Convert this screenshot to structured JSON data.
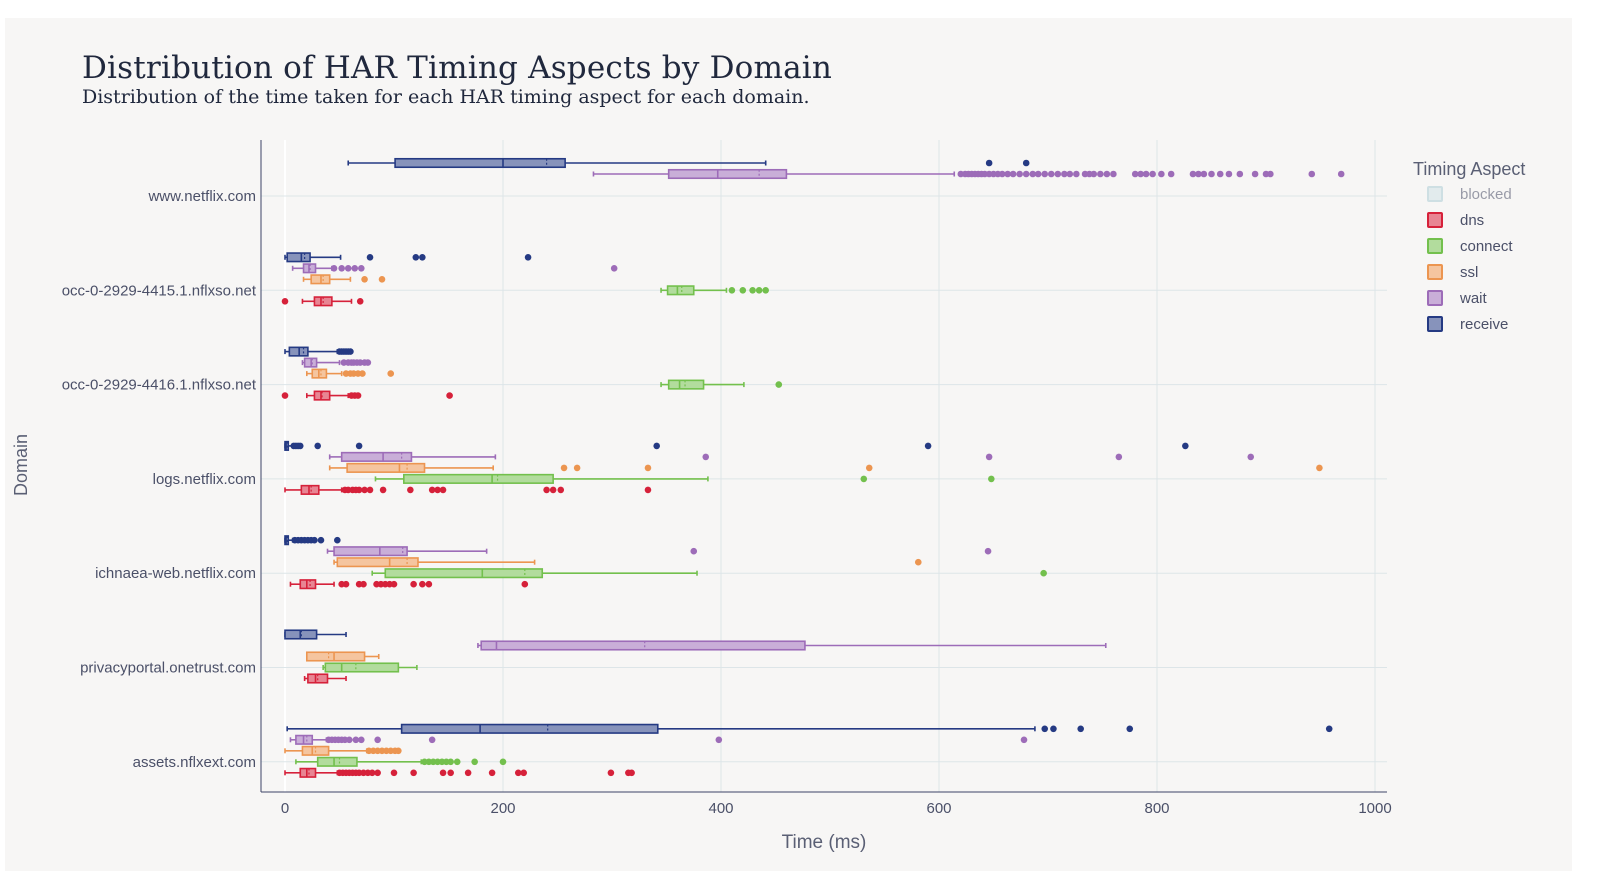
{
  "title": "Distribution of HAR Timing Aspects by Domain",
  "subtitle": "Distribution of the time taken for each HAR timing aspect for each domain.",
  "chart_data": {
    "type": "box",
    "orientation": "horizontal",
    "xlabel": "Time (ms)",
    "ylabel": "Domain",
    "xlim": [
      -20,
      1010
    ],
    "xticks": [
      0,
      200,
      400,
      600,
      800,
      1000
    ],
    "grid": true,
    "legend": {
      "title": "Timing Aspect",
      "placement": "right"
    },
    "categories": [
      "www.netflix.com",
      "occ-0-2929-4415.1.nflxso.net",
      "occ-0-2929-4416.1.nflxso.net",
      "logs.netflix.com",
      "ichnaea-web.netflix.com",
      "privacyportal.onetrust.com",
      "assets.nflxext.com"
    ],
    "series": [
      {
        "name": "blocked",
        "color": "#9ec4cf",
        "hidden": true,
        "boxes": []
      },
      {
        "name": "dns",
        "color": "#d6213a",
        "boxes": [
          {
            "domain": "occ-0-2929-4415.1.nflxso.net",
            "min": 16,
            "q1": 27,
            "median": 33,
            "mean": 35,
            "q3": 43,
            "max": 61,
            "outliers": [
              0,
              69
            ]
          },
          {
            "domain": "occ-0-2929-4416.1.nflxso.net",
            "min": 20,
            "q1": 27,
            "median": 33,
            "mean": 34,
            "q3": 41,
            "max": 58,
            "outliers": [
              0,
              61,
              64,
              67,
              151
            ]
          },
          {
            "domain": "logs.netflix.com",
            "min": 0,
            "q1": 15,
            "median": 22,
            "mean": 24,
            "q3": 31,
            "max": 52,
            "outliers": [
              55,
              58,
              62,
              65,
              68,
              73,
              78,
              90,
              115,
              135,
              140,
              145,
              240,
              246,
              253,
              333
            ]
          },
          {
            "domain": "ichnaea-web.netflix.com",
            "min": 5,
            "q1": 14,
            "median": 20,
            "mean": 23,
            "q3": 28,
            "max": 45,
            "outliers": [
              52,
              56,
              68,
              72,
              84,
              88,
              92,
              96,
              100,
              118,
              126,
              132,
              220
            ]
          },
          {
            "domain": "privacyportal.onetrust.com",
            "min": 18,
            "q1": 21,
            "median": 28,
            "mean": 30,
            "q3": 39,
            "max": 56,
            "outliers": []
          },
          {
            "domain": "assets.nflxext.com",
            "min": 0,
            "q1": 14,
            "median": 20,
            "mean": 22,
            "q3": 28,
            "max": 48,
            "outliers": [
              50,
              53,
              56,
              59,
              62,
              65,
              68,
              72,
              76,
              80,
              85,
              100,
              118,
              145,
              152,
              168,
              190,
              214,
              219,
              299,
              315,
              318
            ]
          }
        ]
      },
      {
        "name": "connect",
        "color": "#73c04d",
        "boxes": [
          {
            "domain": "occ-0-2929-4415.1.nflxso.net",
            "min": 345,
            "q1": 351,
            "median": 360,
            "mean": 364,
            "q3": 375,
            "max": 405,
            "outliers": [
              410,
              420,
              429,
              435,
              441
            ]
          },
          {
            "domain": "occ-0-2929-4416.1.nflxso.net",
            "min": 345,
            "q1": 352,
            "median": 362,
            "mean": 367,
            "q3": 384,
            "max": 421,
            "outliers": [
              453
            ]
          },
          {
            "domain": "logs.netflix.com",
            "min": 83,
            "q1": 109,
            "median": 190,
            "mean": 195,
            "q3": 246,
            "max": 388,
            "outliers": [
              531,
              648
            ]
          },
          {
            "domain": "ichnaea-web.netflix.com",
            "min": 80,
            "q1": 92,
            "median": 181,
            "mean": 220,
            "q3": 236,
            "max": 378,
            "outliers": [
              696
            ]
          },
          {
            "domain": "privacyportal.onetrust.com",
            "min": 35,
            "q1": 37,
            "median": 52,
            "mean": 65,
            "q3": 104,
            "max": 121,
            "outliers": []
          },
          {
            "domain": "assets.nflxext.com",
            "min": 10,
            "q1": 30,
            "median": 45,
            "mean": 50,
            "q3": 66,
            "max": 125,
            "outliers": [
              128,
              132,
              136,
              140,
              144,
              148,
              152,
              158,
              174,
              200
            ]
          }
        ]
      },
      {
        "name": "ssl",
        "color": "#ec9550",
        "boxes": [
          {
            "domain": "occ-0-2929-4415.1.nflxso.net",
            "min": 17,
            "q1": 24,
            "median": 33,
            "mean": 35,
            "q3": 41,
            "max": 60,
            "outliers": [
              73,
              89
            ]
          },
          {
            "domain": "occ-0-2929-4416.1.nflxso.net",
            "min": 20,
            "q1": 25,
            "median": 31,
            "mean": 33,
            "q3": 38,
            "max": 52,
            "outliers": [
              56,
              60,
              63,
              67,
              71,
              97
            ]
          },
          {
            "domain": "logs.netflix.com",
            "min": 41,
            "q1": 57,
            "median": 105,
            "mean": 112,
            "q3": 128,
            "max": 191,
            "outliers": [
              256,
              268,
              333,
              536,
              949
            ]
          },
          {
            "domain": "ichnaea-web.netflix.com",
            "min": 45,
            "q1": 48,
            "median": 96,
            "mean": 112,
            "q3": 122,
            "max": 229,
            "outliers": [
              581
            ]
          },
          {
            "domain": "privacyportal.onetrust.com",
            "min": 20,
            "q1": 20,
            "median": 45,
            "mean": 40,
            "q3": 73,
            "max": 86,
            "outliers": []
          },
          {
            "domain": "assets.nflxext.com",
            "min": 0,
            "q1": 16,
            "median": 25,
            "mean": 28,
            "q3": 40,
            "max": 75,
            "outliers": [
              77,
              81,
              85,
              89,
              93,
              97,
              101,
              104
            ]
          }
        ]
      },
      {
        "name": "wait",
        "color": "#9d6cb8",
        "boxes": [
          {
            "domain": "www.netflix.com",
            "min": 283,
            "q1": 352,
            "median": 397,
            "mean": 435,
            "q3": 460,
            "max": 614,
            "outliers": [
              620,
              624,
              627,
              630,
              633,
              636,
              639,
              642,
              646,
              650,
              654,
              658,
              663,
              668,
              674,
              680,
              686,
              691,
              697,
              703,
              709,
              715,
              720,
              726,
              734,
              738,
              742,
              748,
              754,
              760,
              780,
              785,
              790,
              796,
              804,
              813,
              833,
              838,
              843,
              850,
              858,
              866,
              876,
              890,
              900,
              904,
              942,
              969
            ]
          },
          {
            "domain": "occ-0-2929-4415.1.nflxso.net",
            "min": 7,
            "q1": 17,
            "median": 22,
            "mean": 23,
            "q3": 28,
            "max": 43,
            "outliers": [
              45,
              52,
              58,
              64,
              70,
              302
            ]
          },
          {
            "domain": "occ-0-2929-4416.1.nflxso.net",
            "min": 16,
            "q1": 18,
            "median": 24,
            "mean": 25,
            "q3": 29,
            "max": 50,
            "outliers": [
              54,
              58,
              61,
              63,
              66,
              69,
              73,
              76
            ]
          },
          {
            "domain": "logs.netflix.com",
            "min": 41,
            "q1": 52,
            "median": 90,
            "mean": 107,
            "q3": 116,
            "max": 193,
            "outliers": [
              386,
              646,
              765,
              886
            ]
          },
          {
            "domain": "ichnaea-web.netflix.com",
            "min": 39,
            "q1": 45,
            "median": 87,
            "mean": 108,
            "q3": 112,
            "max": 185,
            "outliers": [
              375,
              645
            ]
          },
          {
            "domain": "privacyportal.onetrust.com",
            "min": 177,
            "q1": 180,
            "median": 194,
            "mean": 330,
            "q3": 477,
            "max": 753,
            "outliers": []
          },
          {
            "domain": "assets.nflxext.com",
            "min": 5,
            "q1": 10,
            "median": 17,
            "mean": 20,
            "q3": 25,
            "max": 38,
            "outliers": [
              40,
              43,
              46,
              49,
              52,
              55,
              59,
              65,
              70,
              85,
              135,
              398,
              678
            ]
          }
        ]
      },
      {
        "name": "receive",
        "color": "#253a83",
        "boxes": [
          {
            "domain": "www.netflix.com",
            "min": 58,
            "q1": 101,
            "median": 200,
            "mean": 240,
            "q3": 257,
            "max": 441,
            "outliers": [
              646,
              680
            ]
          },
          {
            "domain": "occ-0-2929-4415.1.nflxso.net",
            "min": 0,
            "q1": 2,
            "median": 15,
            "mean": 18,
            "q3": 23,
            "max": 51,
            "outliers": [
              78,
              120,
              126,
              223
            ]
          },
          {
            "domain": "occ-0-2929-4416.1.nflxso.net",
            "min": 0,
            "q1": 4,
            "median": 13,
            "mean": 17,
            "q3": 21,
            "max": 48,
            "outliers": [
              50,
              52,
              54,
              56,
              58,
              60
            ]
          },
          {
            "domain": "logs.netflix.com",
            "min": 0,
            "q1": 0,
            "median": 1,
            "mean": 2,
            "q3": 3,
            "max": 7,
            "outliers": [
              8,
              10,
              12,
              14,
              30,
              68,
              341,
              590,
              826
            ]
          },
          {
            "domain": "ichnaea-web.netflix.com",
            "min": 0,
            "q1": 0,
            "median": 1,
            "mean": 2,
            "q3": 3,
            "max": 7,
            "outliers": [
              9,
              12,
              15,
              18,
              21,
              24,
              27,
              33,
              48
            ]
          },
          {
            "domain": "privacyportal.onetrust.com",
            "min": 0,
            "q1": 0,
            "median": 14,
            "mean": 15,
            "q3": 29,
            "max": 56,
            "outliers": []
          },
          {
            "domain": "assets.nflxext.com",
            "min": 2,
            "q1": 107,
            "median": 179,
            "mean": 241,
            "q3": 342,
            "max": 688,
            "outliers": [
              697,
              705,
              730,
              775,
              958
            ]
          }
        ]
      }
    ]
  }
}
